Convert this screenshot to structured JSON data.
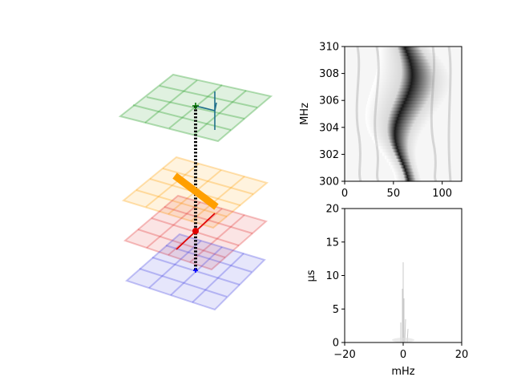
{
  "chart_data": [
    {
      "type": "diagram",
      "description_layers": [
        "green",
        "orange",
        "red",
        "blue"
      ],
      "colors": {
        "green": "#2ca02c",
        "orange": "#ff9f00",
        "red": "#e03030",
        "blue": "#4040e0",
        "teal": "#1f6f8b",
        "marker_red": "#e00000",
        "marker_blue": "#0000ff",
        "marker_green": "#007000"
      }
    },
    {
      "type": "heatmap",
      "colormap": "gray_r",
      "xlim": [
        0,
        120
      ],
      "ylim": [
        300,
        310
      ],
      "xticks": [
        "0",
        "50",
        "100"
      ],
      "yticks": [
        "300",
        "302",
        "304",
        "306",
        "308",
        "310"
      ],
      "xlabel": "",
      "ylabel": "MHz",
      "ridge_center_x": 62,
      "ridge_width_x": 12
    },
    {
      "type": "scatter",
      "xlim": [
        -20,
        20
      ],
      "ylim": [
        0,
        20
      ],
      "xticks": [
        "−20",
        "0",
        "20"
      ],
      "yticks": [
        "0",
        "5",
        "10",
        "15",
        "20"
      ],
      "xlabel": "mHz",
      "ylabel": "μs",
      "peak_x": 0,
      "peak_y": 12
    }
  ]
}
